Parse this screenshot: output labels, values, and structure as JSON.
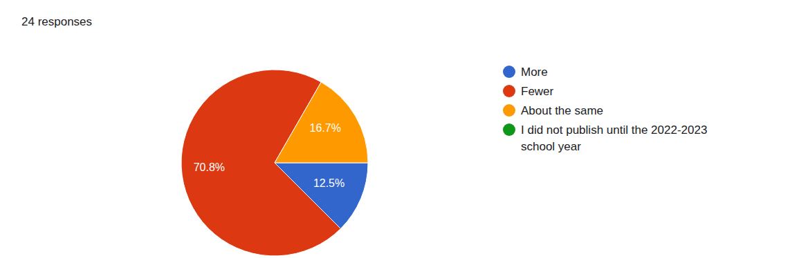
{
  "chart_data": {
    "type": "pie",
    "subtitle": "24 responses",
    "categories": [
      "More",
      "Fewer",
      "About the same",
      "I did not publish until the 2022-2023 school year"
    ],
    "values": [
      12.5,
      70.8,
      16.7,
      0
    ],
    "colors": [
      "#3366cc",
      "#dc3912",
      "#ff9900",
      "#109618"
    ],
    "data_labels": true,
    "value_labels": [
      "12.5%",
      "70.8%",
      "16.7%",
      null
    ],
    "legend": "right"
  }
}
